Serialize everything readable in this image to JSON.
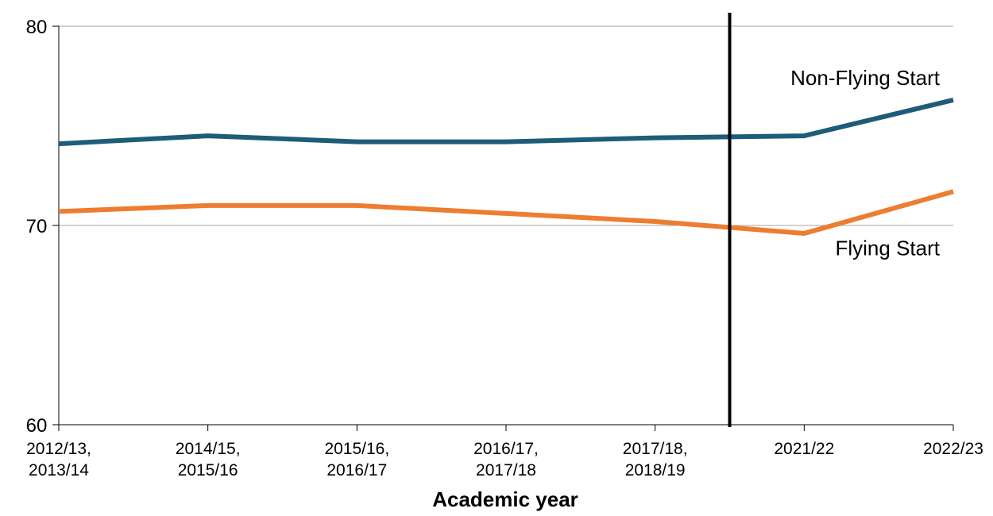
{
  "chart_data": {
    "type": "line",
    "xlabel": "Academic year",
    "ylabel": "",
    "ylim": [
      60,
      80
    ],
    "yticks": [
      "60",
      "70",
      "80"
    ],
    "grid": true,
    "legend": "direct labels at right of lines",
    "categories": [
      [
        "2012/13,",
        "2013/14"
      ],
      [
        "2014/15,",
        "2015/16"
      ],
      [
        "2015/16,",
        "2016/17"
      ],
      [
        "2016/17,",
        "2017/18"
      ],
      [
        "2017/18,",
        "2018/19"
      ],
      [
        "2021/22"
      ],
      [
        "2022/23"
      ]
    ],
    "series": [
      {
        "name": "Non-Flying Start",
        "color": "#1f5c7a",
        "values": [
          74.1,
          74.5,
          74.2,
          74.2,
          74.4,
          74.5,
          76.3
        ]
      },
      {
        "name": "Flying Start",
        "color": "#ed7d31",
        "values": [
          70.7,
          71.0,
          71.0,
          70.6,
          70.2,
          69.6,
          71.7
        ]
      }
    ],
    "break_marker": {
      "between_categories": [
        4,
        5
      ],
      "color": "#000000"
    }
  }
}
